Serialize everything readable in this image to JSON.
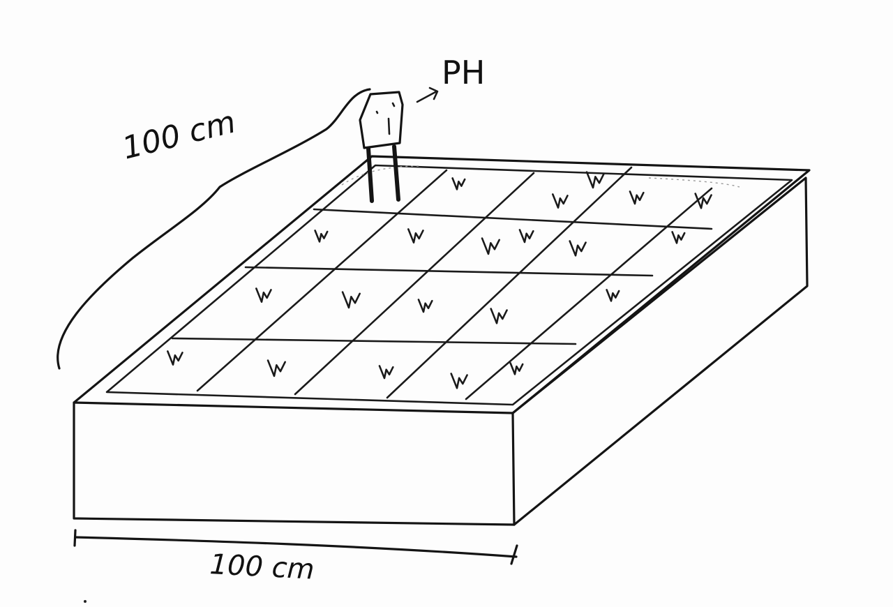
{
  "labels": {
    "depth": "100 cm",
    "width": "100 cm",
    "sensor": "PH"
  },
  "icons": {
    "sensor": "ph-sensor-icon",
    "sprout": "sprout-icon",
    "arrow": "arrow-right-icon"
  },
  "colors": {
    "ink": "#141414",
    "paper": "#fdfdfd"
  }
}
